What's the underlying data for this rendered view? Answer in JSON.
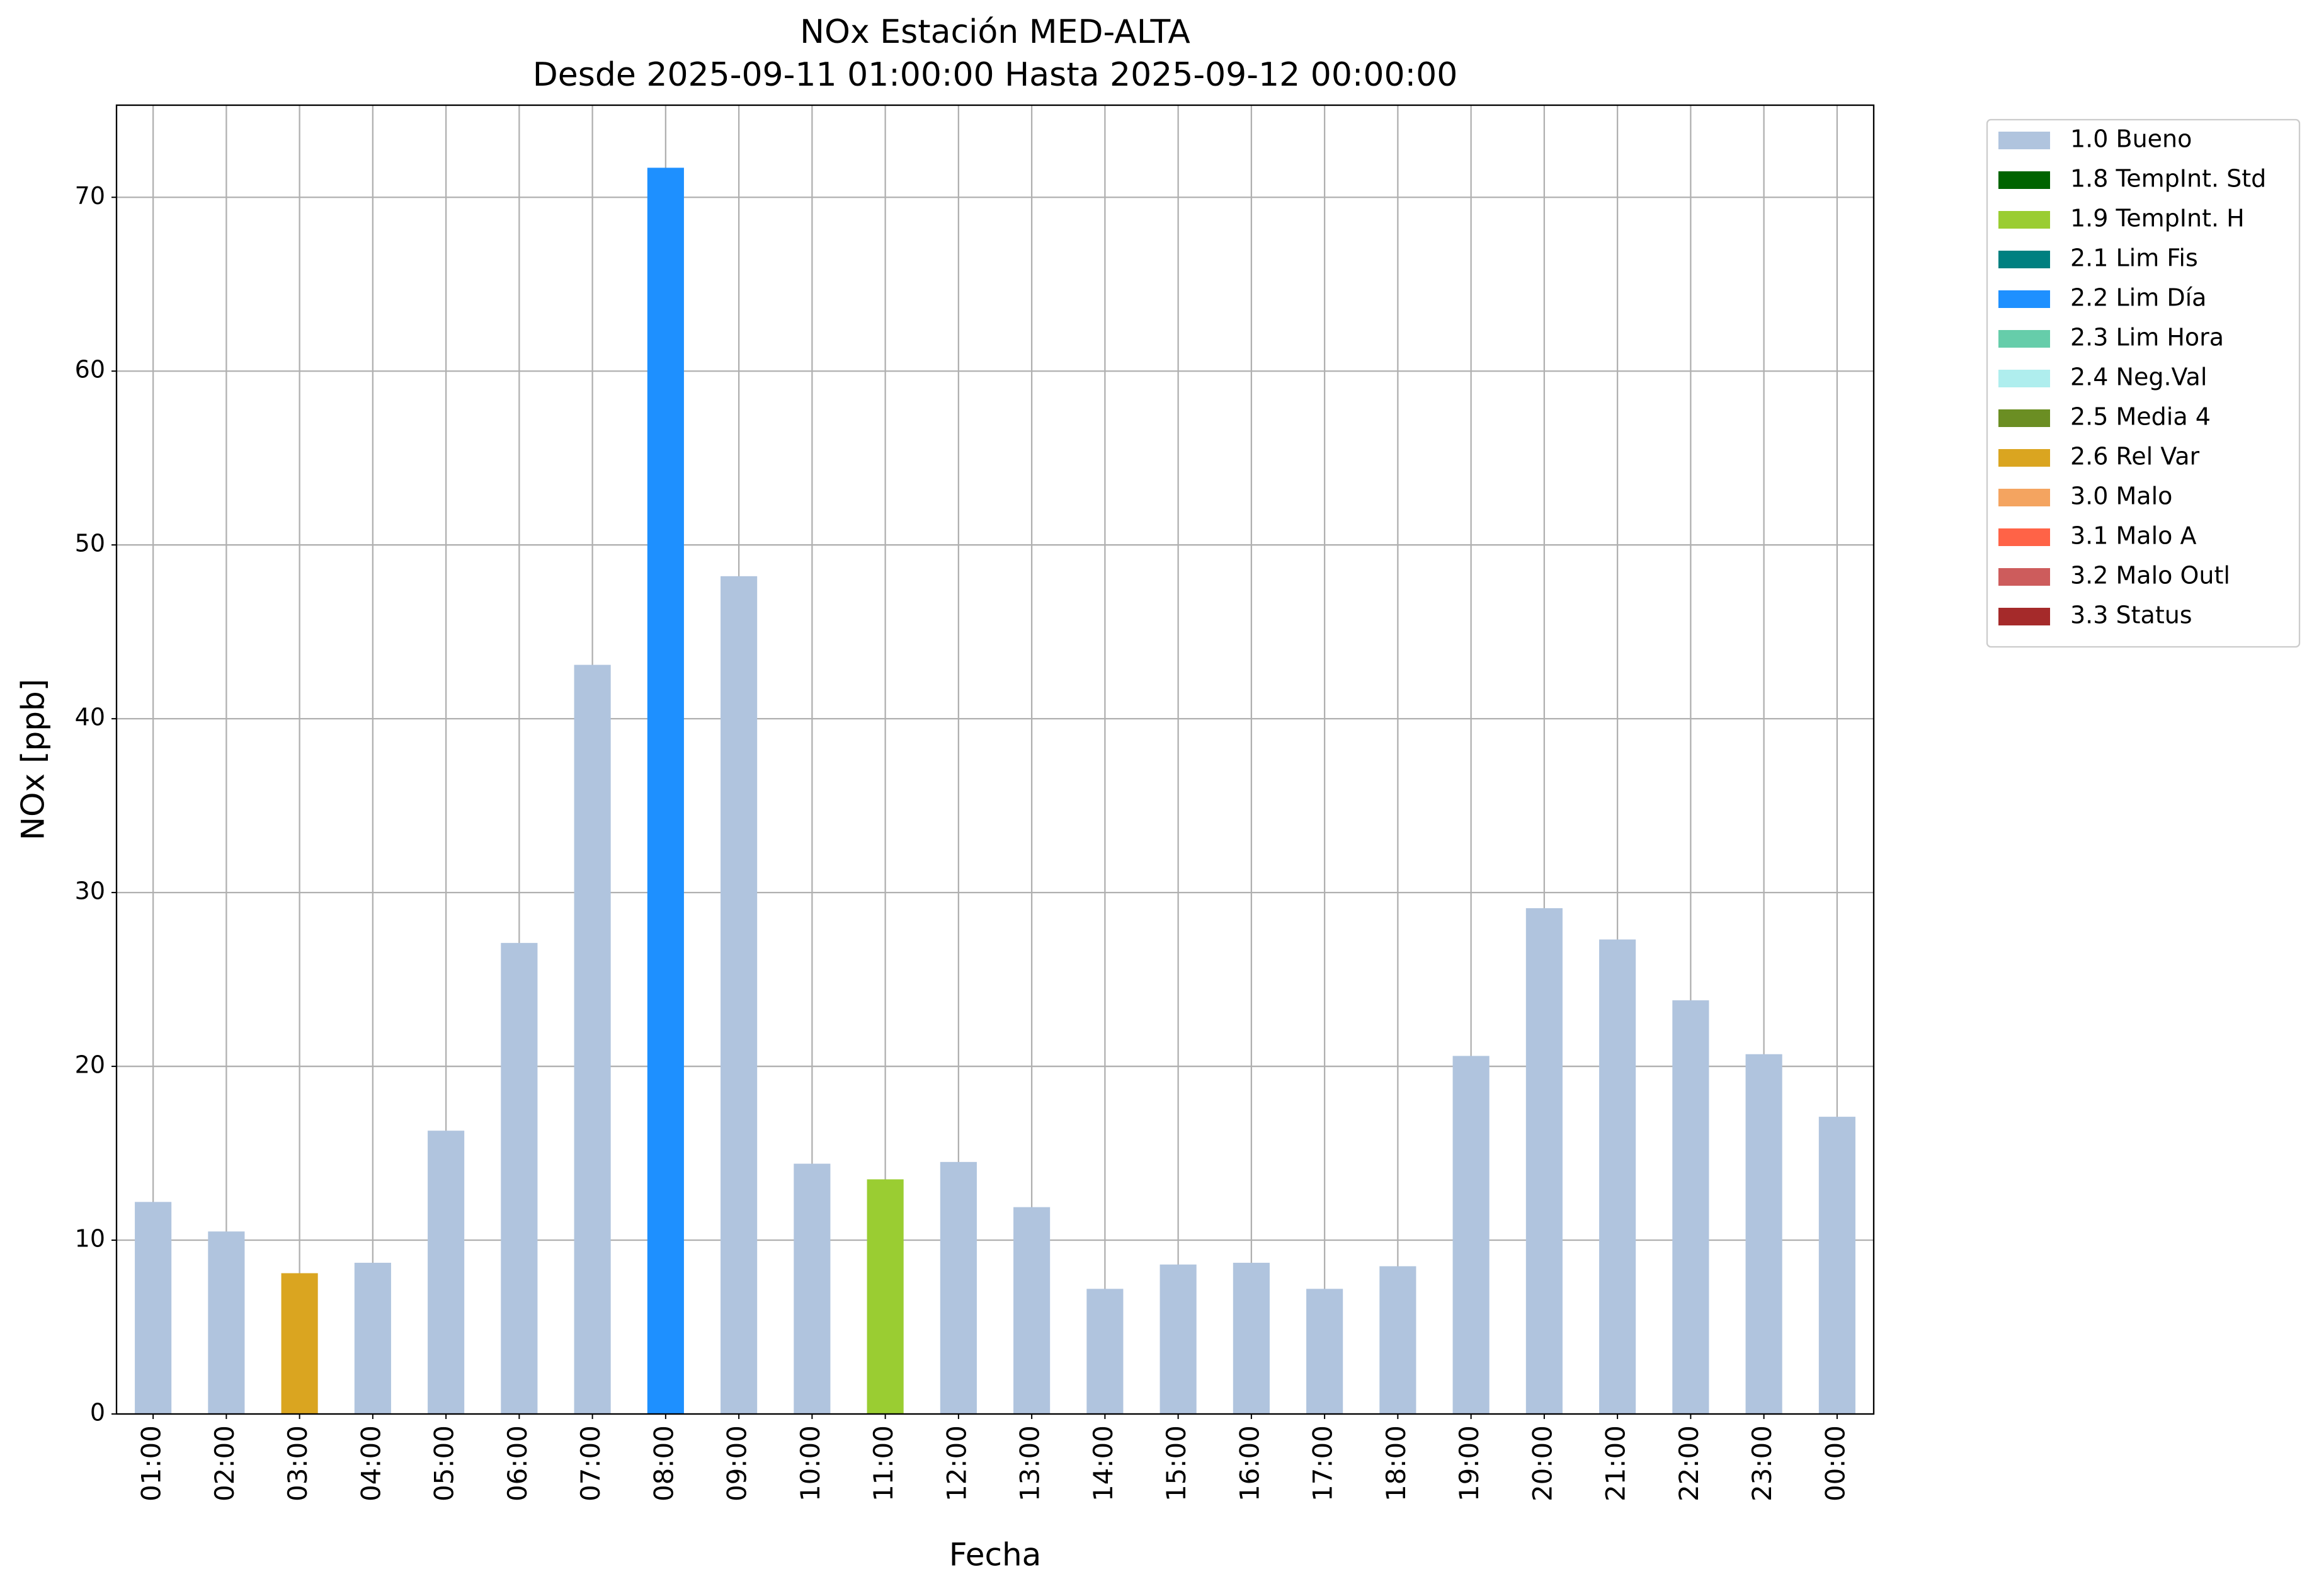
{
  "chart_data": {
    "type": "stacked-bar",
    "title": "NOx Estación MED-ALTA",
    "subtitle": "Desde 2025-09-11 01:00:00 Hasta 2025-09-12 00:00:00",
    "x_label": "Fecha",
    "y_label": "NOx [ppb]",
    "categories": [
      "01:00",
      "02:00",
      "03:00",
      "04:00",
      "05:00",
      "06:00",
      "07:00",
      "08:00",
      "09:00",
      "10:00",
      "11:00",
      "12:00",
      "13:00",
      "14:00",
      "15:00",
      "16:00",
      "17:00",
      "18:00",
      "19:00",
      "20:00",
      "21:00",
      "22:00",
      "23:00",
      "00:00"
    ],
    "series": [
      {
        "name": "1.0 Bueno",
        "color": "#b0c4de",
        "values": [
          12.2,
          10.5,
          null,
          8.7,
          16.3,
          27.1,
          43.1,
          null,
          48.2,
          14.4,
          null,
          14.5,
          11.9,
          7.2,
          8.6,
          8.7,
          7.2,
          8.5,
          20.6,
          29.1,
          27.3,
          23.8,
          20.7,
          17.1
        ]
      },
      {
        "name": "1.8 TempInt. Std",
        "color": "#006400",
        "values": [
          null,
          null,
          null,
          null,
          null,
          null,
          null,
          null,
          null,
          null,
          null,
          null,
          null,
          null,
          null,
          null,
          null,
          null,
          null,
          null,
          null,
          null,
          null,
          null
        ]
      },
      {
        "name": "1.9 TempInt. H",
        "color": "#9acd32",
        "values": [
          null,
          null,
          null,
          null,
          null,
          null,
          null,
          null,
          null,
          null,
          13.5,
          null,
          null,
          null,
          null,
          null,
          null,
          null,
          null,
          null,
          null,
          null,
          null,
          null
        ]
      },
      {
        "name": "2.1 Lim Fis",
        "color": "#008080",
        "values": [
          null,
          null,
          null,
          null,
          null,
          null,
          null,
          null,
          null,
          null,
          null,
          null,
          null,
          null,
          null,
          null,
          null,
          null,
          null,
          null,
          null,
          null,
          null,
          null
        ]
      },
      {
        "name": "2.2 Lim Día",
        "color": "#1e90ff",
        "values": [
          null,
          null,
          null,
          null,
          null,
          null,
          null,
          71.7,
          null,
          null,
          null,
          null,
          null,
          null,
          null,
          null,
          null,
          null,
          null,
          null,
          null,
          null,
          null,
          null
        ]
      },
      {
        "name": "2.3 Lim Hora",
        "color": "#66cdaa",
        "values": [
          null,
          null,
          null,
          null,
          null,
          null,
          null,
          null,
          null,
          null,
          null,
          null,
          null,
          null,
          null,
          null,
          null,
          null,
          null,
          null,
          null,
          null,
          null,
          null
        ]
      },
      {
        "name": "2.4 Neg.Val",
        "color": "#afeeee",
        "values": [
          null,
          null,
          null,
          null,
          null,
          null,
          null,
          null,
          null,
          null,
          null,
          null,
          null,
          null,
          null,
          null,
          null,
          null,
          null,
          null,
          null,
          null,
          null,
          null
        ]
      },
      {
        "name": "2.5 Media 4",
        "color": "#6b8e23",
        "values": [
          null,
          null,
          null,
          null,
          null,
          null,
          null,
          null,
          null,
          null,
          null,
          null,
          null,
          null,
          null,
          null,
          null,
          null,
          null,
          null,
          null,
          null,
          null,
          null
        ]
      },
      {
        "name": "2.6 Rel Var",
        "color": "#daa520",
        "values": [
          null,
          null,
          8.1,
          null,
          null,
          null,
          null,
          null,
          null,
          null,
          null,
          null,
          null,
          null,
          null,
          null,
          null,
          null,
          null,
          null,
          null,
          null,
          null,
          null
        ]
      },
      {
        "name": "3.0 Malo",
        "color": "#f4a460",
        "values": [
          null,
          null,
          null,
          null,
          null,
          null,
          null,
          null,
          null,
          null,
          null,
          null,
          null,
          null,
          null,
          null,
          null,
          null,
          null,
          null,
          null,
          null,
          null,
          null
        ]
      },
      {
        "name": "3.1 Malo A",
        "color": "#ff6347",
        "values": [
          null,
          null,
          null,
          null,
          null,
          null,
          null,
          null,
          null,
          null,
          null,
          null,
          null,
          null,
          null,
          null,
          null,
          null,
          null,
          null,
          null,
          null,
          null,
          null
        ]
      },
      {
        "name": "3.2 Malo Outl",
        "color": "#cd5c5c",
        "values": [
          null,
          null,
          null,
          null,
          null,
          null,
          null,
          null,
          null,
          null,
          null,
          null,
          null,
          null,
          null,
          null,
          null,
          null,
          null,
          null,
          null,
          null,
          null,
          null
        ]
      },
      {
        "name": "3.3 Status",
        "color": "#a52a2a",
        "values": [
          null,
          null,
          null,
          null,
          null,
          null,
          null,
          null,
          null,
          null,
          null,
          null,
          null,
          null,
          null,
          null,
          null,
          null,
          null,
          null,
          null,
          null,
          null,
          null
        ]
      }
    ],
    "ylim": [
      0,
      75.3
    ],
    "yticks": [
      0,
      10,
      20,
      30,
      40,
      50,
      60,
      70
    ],
    "grid": true
  }
}
